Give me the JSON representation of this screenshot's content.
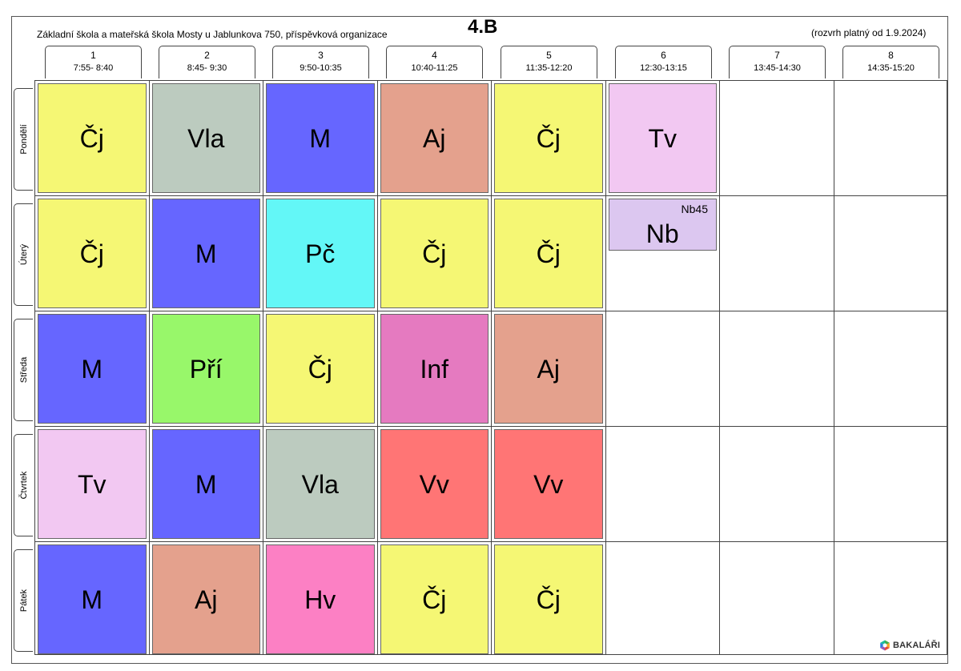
{
  "header": {
    "school_name": "Základní škola a mateřská škola Mosty u Jablunkova 750, příspěvková organizace",
    "class_name": "4.B",
    "valid_from": "(rozvrh platný od 1.9.2024)"
  },
  "periods": [
    {
      "number": "1",
      "time": "7:55- 8:40"
    },
    {
      "number": "2",
      "time": "8:45- 9:30"
    },
    {
      "number": "3",
      "time": "9:50-10:35"
    },
    {
      "number": "4",
      "time": "10:40-11:25"
    },
    {
      "number": "5",
      "time": "11:35-12:20"
    },
    {
      "number": "6",
      "time": "12:30-13:15"
    },
    {
      "number": "7",
      "time": "13:45-14:30"
    },
    {
      "number": "8",
      "time": "14:35-15:20"
    }
  ],
  "days": [
    "Pondělí",
    "Úterý",
    "Středa",
    "Čtvrtek",
    "Pátek"
  ],
  "subject_colors": {
    "Čj": "#f5f774",
    "Vla": "#bccbbf",
    "M": "#6666ff",
    "Aj": "#e4a18d",
    "Tv": "#f2c8f2",
    "Pč": "#63f7f7",
    "Nb": "#dcc7f0",
    "Pří": "#98f76a",
    "Inf": "#e57ac0",
    "Vv": "#ff7575",
    "Hv": "#fc80c4"
  },
  "lessons": [
    {
      "day": 0,
      "period": 0,
      "subject": "Čj"
    },
    {
      "day": 0,
      "period": 1,
      "subject": "Vla"
    },
    {
      "day": 0,
      "period": 2,
      "subject": "M"
    },
    {
      "day": 0,
      "period": 3,
      "subject": "Aj"
    },
    {
      "day": 0,
      "period": 4,
      "subject": "Čj"
    },
    {
      "day": 0,
      "period": 5,
      "subject": "Tv"
    },
    {
      "day": 1,
      "period": 0,
      "subject": "Čj"
    },
    {
      "day": 1,
      "period": 1,
      "subject": "M"
    },
    {
      "day": 1,
      "period": 2,
      "subject": "Pč"
    },
    {
      "day": 1,
      "period": 3,
      "subject": "Čj"
    },
    {
      "day": 1,
      "period": 4,
      "subject": "Čj"
    },
    {
      "day": 1,
      "period": 5,
      "subject": "Nb",
      "room": "Nb45",
      "partial": 0.5
    },
    {
      "day": 2,
      "period": 0,
      "subject": "M"
    },
    {
      "day": 2,
      "period": 1,
      "subject": "Pří"
    },
    {
      "day": 2,
      "period": 2,
      "subject": "Čj"
    },
    {
      "day": 2,
      "period": 3,
      "subject": "Inf"
    },
    {
      "day": 2,
      "period": 4,
      "subject": "Aj"
    },
    {
      "day": 3,
      "period": 0,
      "subject": "Tv"
    },
    {
      "day": 3,
      "period": 1,
      "subject": "M"
    },
    {
      "day": 3,
      "period": 2,
      "subject": "Vla"
    },
    {
      "day": 3,
      "period": 3,
      "subject": "Vv"
    },
    {
      "day": 3,
      "period": 4,
      "subject": "Vv"
    },
    {
      "day": 4,
      "period": 0,
      "subject": "M"
    },
    {
      "day": 4,
      "period": 1,
      "subject": "Aj"
    },
    {
      "day": 4,
      "period": 2,
      "subject": "Hv"
    },
    {
      "day": 4,
      "period": 3,
      "subject": "Čj"
    },
    {
      "day": 4,
      "period": 4,
      "subject": "Čj"
    }
  ],
  "logo": {
    "text": "BAKALÁŘI",
    "icon": "bakalari-logo-icon"
  }
}
